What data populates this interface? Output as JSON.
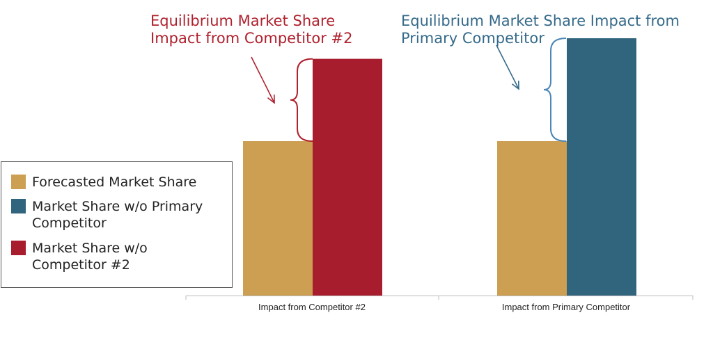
{
  "chart_data": {
    "type": "bar",
    "title": "",
    "xlabel": "",
    "ylabel": "",
    "ylim": [
      0,
      100
    ],
    "grid": false,
    "legend_position": "left",
    "categories": [
      "Impact from Competitor #2",
      "Impact from Primary Competitor"
    ],
    "series": [
      {
        "name": "Forecasted Market Share",
        "color": "#cc9f52",
        "values": [
          60,
          60
        ]
      },
      {
        "name": "Market Share w/o Competitor #2",
        "color": "#a81d2d",
        "values": [
          92,
          null
        ]
      },
      {
        "name": "Market Share w/o Primary Competitor",
        "color": "#31647d",
        "values": [
          null,
          100
        ]
      }
    ],
    "legend": [
      {
        "label": "Forecasted Market Share",
        "color": "#cc9f52"
      },
      {
        "label": "Market Share w/o Primary Competitor",
        "color": "#31647d"
      },
      {
        "label": "Market Share w/o Competitor #2",
        "color": "#a81d2d"
      }
    ],
    "annotations": [
      {
        "text": "Equilibrium Market Share Impact from Competitor #2",
        "line1": "Equilibrium Market Share",
        "line2": "Impact from Competitor #2",
        "color": "#b0212e"
      },
      {
        "text": "Equilibrium Market Share Impact from Primary Competitor",
        "line1": "Equilibrium Market Share Impact from",
        "line2": "Primary Competitor",
        "color": "#356a8a"
      }
    ]
  }
}
